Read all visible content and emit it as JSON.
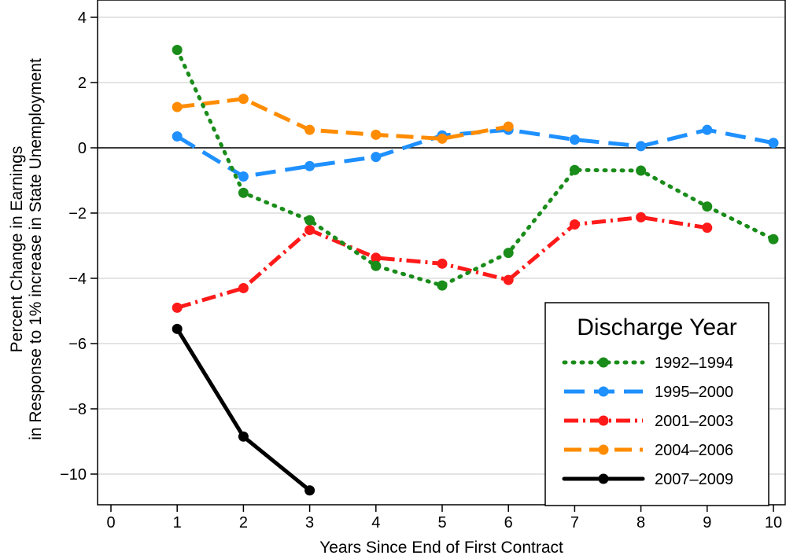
{
  "chart_data": {
    "type": "line",
    "xlabel": "Years Since End of First Contract",
    "ylabel_lines": [
      "Percent Change in Earnings",
      "in Response to 1% increase in State Unemployment"
    ],
    "xlim": [
      0,
      10
    ],
    "ylim": [
      -11,
      4
    ],
    "xticks": [
      0,
      1,
      2,
      3,
      4,
      5,
      6,
      7,
      8,
      9,
      10
    ],
    "yticks": [
      4,
      2,
      0,
      -2,
      -4,
      -6,
      -8,
      -10
    ],
    "ytick_labels": [
      "4",
      "2",
      "0",
      "−2",
      "−4",
      "−6",
      "−8",
      "−10"
    ],
    "grid": "horizontal",
    "zero_line": true,
    "legend": {
      "title": "Discharge Year",
      "position": "bottom-right"
    },
    "series": [
      {
        "name": "1992–1994",
        "color": "#1a8c1a",
        "style": "dotted",
        "x": [
          1,
          2,
          3,
          4,
          5,
          6,
          7,
          8,
          9,
          10
        ],
        "y": [
          3.0,
          -1.38,
          -2.22,
          -3.62,
          -4.22,
          -3.22,
          -0.68,
          -0.7,
          -1.8,
          -2.8
        ]
      },
      {
        "name": "1995–2000",
        "color": "#1e90ff",
        "style": "longdash",
        "x": [
          1,
          2,
          3,
          4,
          5,
          6,
          7,
          8,
          9,
          10
        ],
        "y": [
          0.35,
          -0.88,
          -0.56,
          -0.28,
          0.38,
          0.55,
          0.25,
          0.05,
          0.55,
          0.15
        ]
      },
      {
        "name": "2001–2003",
        "color": "#ff1a1a",
        "style": "dashdot",
        "x": [
          1,
          2,
          3,
          4,
          5,
          6,
          7,
          8,
          9
        ],
        "y": [
          -4.9,
          -4.3,
          -2.52,
          -3.37,
          -3.55,
          -4.05,
          -2.35,
          -2.13,
          -2.45
        ]
      },
      {
        "name": "2004–2006",
        "color": "#ff8c00",
        "style": "dash",
        "x": [
          1,
          2,
          3,
          4,
          5,
          6
        ],
        "y": [
          1.25,
          1.5,
          0.55,
          0.4,
          0.28,
          0.65
        ]
      },
      {
        "name": "2007–2009",
        "color": "#000000",
        "style": "solid",
        "x": [
          1,
          2,
          3
        ],
        "y": [
          -5.55,
          -8.85,
          -10.5
        ]
      }
    ]
  }
}
